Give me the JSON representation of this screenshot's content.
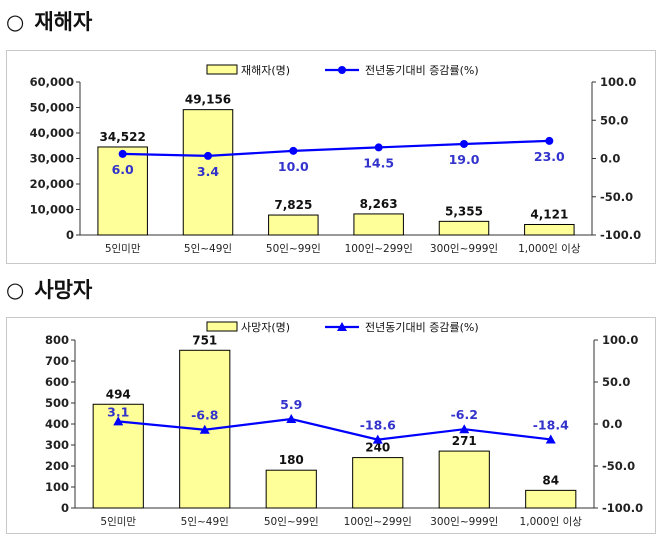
{
  "sections": [
    {
      "marker": "○",
      "title": "재해자"
    },
    {
      "marker": "○",
      "title": "사망자"
    }
  ],
  "colors": {
    "bar_fill": "#ffff99",
    "bar_stroke": "#000000",
    "line": "#0000ff",
    "rate_label": "#3333cc",
    "axis": "#333333"
  },
  "chart_data": [
    {
      "type": "bar",
      "categories": [
        "5인미만",
        "5인~49인",
        "50인~99인",
        "100인~299인",
        "300인~999인",
        "1,000인 이상"
      ],
      "series": [
        {
          "name": "재해자(명)",
          "type": "bar",
          "values": [
            34522,
            49156,
            7825,
            8263,
            5355,
            4121
          ],
          "labels": [
            "34,522",
            "49,156",
            "7,825",
            "8,263",
            "5,355",
            "4,121"
          ]
        },
        {
          "name": "전년동기대비 증감률(%)",
          "type": "line",
          "marker": "circle",
          "axis": "right",
          "values": [
            6.0,
            3.4,
            10.0,
            14.5,
            19.0,
            23.0
          ],
          "labels": [
            "6.0",
            "3.4",
            "10.0",
            "14.5",
            "19.0",
            "23.0"
          ]
        }
      ],
      "left_axis": {
        "ylim": [
          0,
          60000
        ],
        "ticks": [
          "0",
          "10,000",
          "20,000",
          "30,000",
          "40,000",
          "50,000",
          "60,000"
        ]
      },
      "right_axis": {
        "ylim": [
          -100,
          100
        ],
        "ticks": [
          "-100.0",
          "-50.0",
          "0.0",
          "50.0",
          "100.0"
        ]
      },
      "legend": "top-center",
      "grid": false
    },
    {
      "type": "bar",
      "categories": [
        "5인미만",
        "5인~49인",
        "50인~99인",
        "100인~299인",
        "300인~999인",
        "1,000인 이상"
      ],
      "series": [
        {
          "name": "사망자(명)",
          "type": "bar",
          "values": [
            494,
            751,
            180,
            240,
            271,
            84
          ],
          "labels": [
            "494",
            "751",
            "180",
            "240",
            "271",
            "84"
          ]
        },
        {
          "name": "전년동기대비 증감률(%)",
          "type": "line",
          "marker": "triangle",
          "axis": "right",
          "values": [
            3.1,
            -6.8,
            5.9,
            -18.6,
            -6.2,
            -18.4
          ],
          "labels": [
            "3.1",
            "-6.8",
            "5.9",
            "-18.6",
            "-6.2",
            "-18.4"
          ]
        }
      ],
      "left_axis": {
        "ylim": [
          0,
          800
        ],
        "ticks": [
          "0",
          "100",
          "200",
          "300",
          "400",
          "500",
          "600",
          "700",
          "800"
        ]
      },
      "right_axis": {
        "ylim": [
          -100,
          100
        ],
        "ticks": [
          "-100.0",
          "-50.0",
          "0.0",
          "50.0",
          "100.0"
        ]
      },
      "legend": "top-center",
      "grid": false
    }
  ]
}
